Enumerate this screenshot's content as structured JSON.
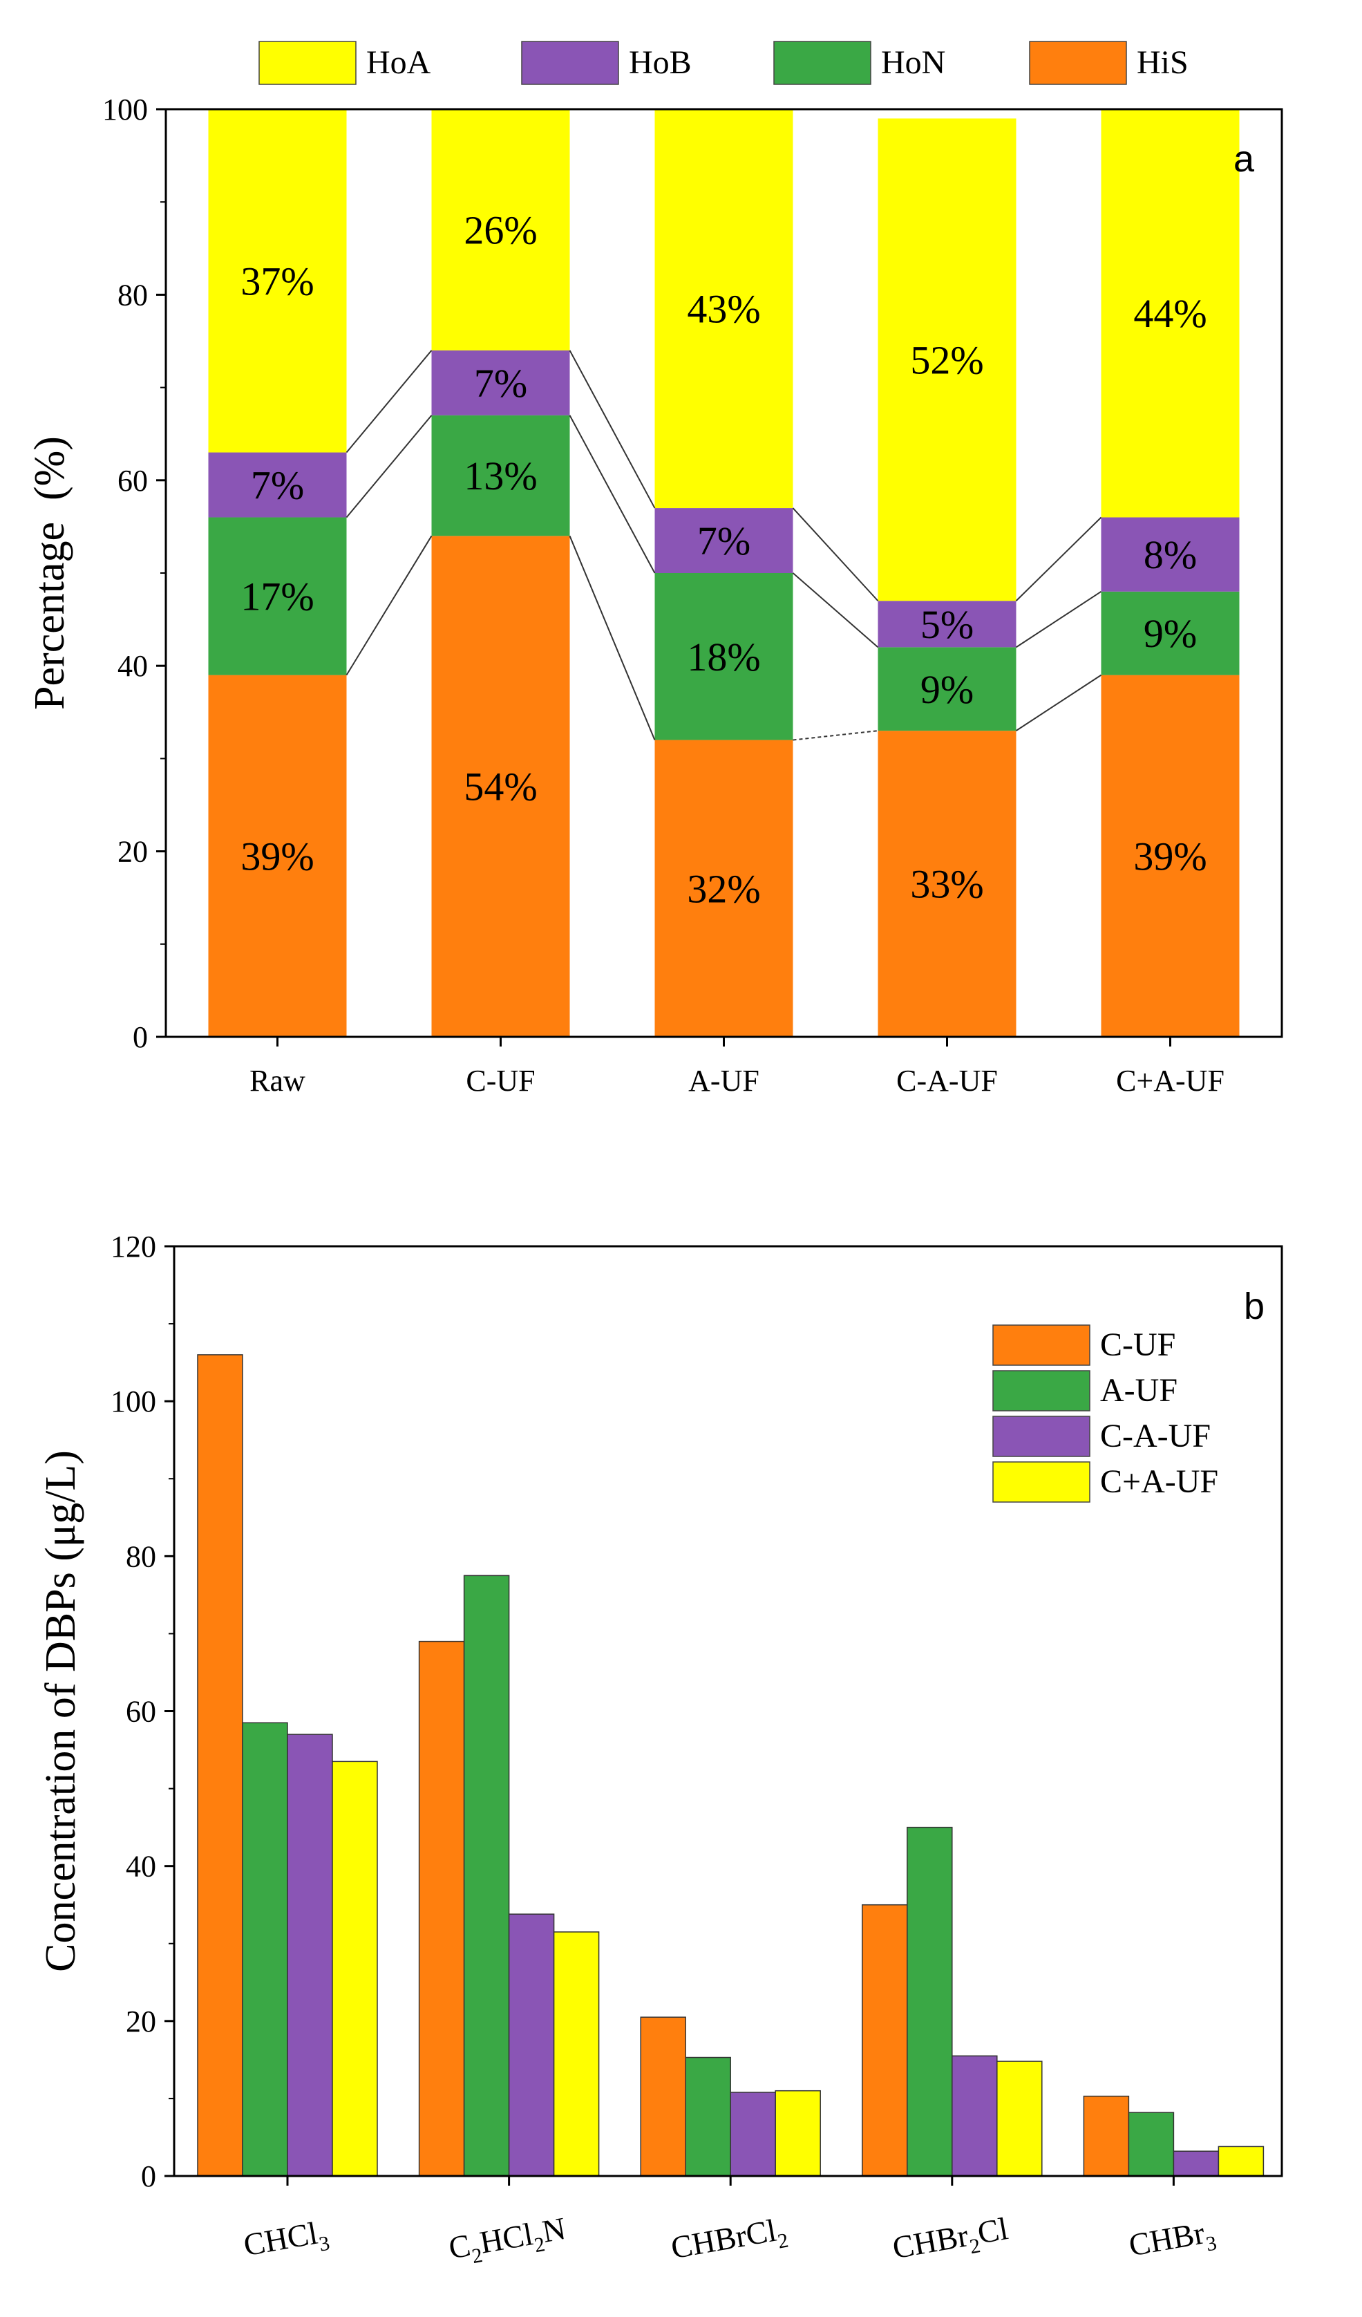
{
  "chart_data": [
    {
      "type": "bar",
      "stacked": true,
      "panel_label": "a",
      "title": "",
      "xlabel": "",
      "ylabel": "Percentage  (%)",
      "ylim": [
        0,
        100
      ],
      "yticks": [
        0,
        20,
        40,
        60,
        80,
        100
      ],
      "categories": [
        "Raw",
        "C-UF",
        "A-UF",
        "C-A-UF",
        "C+A-UF"
      ],
      "legend": [
        "HoA",
        "HoB",
        "HoN",
        "HiS"
      ],
      "legend_position": "top-center",
      "series": [
        {
          "name": "HiS",
          "color": "#ff7f0e",
          "values": [
            39,
            54,
            32,
            33,
            39
          ],
          "labels": [
            "39%",
            "54%",
            "32%",
            "33%",
            "39%"
          ]
        },
        {
          "name": "HoN",
          "color": "#3aa845",
          "values": [
            17,
            13,
            18,
            9,
            9
          ],
          "labels": [
            "17%",
            "13%",
            "18%",
            "9%",
            "9%"
          ]
        },
        {
          "name": "HoB",
          "color": "#8a55b5",
          "values": [
            7,
            7,
            7,
            5,
            8
          ],
          "labels": [
            "7%",
            "7%",
            "7%",
            "5%",
            "8%"
          ]
        },
        {
          "name": "HoA",
          "color": "#ffff00",
          "values": [
            37,
            26,
            43,
            52,
            44
          ],
          "labels": [
            "37%",
            "26%",
            "43%",
            "52%",
            "44%"
          ]
        }
      ]
    },
    {
      "type": "bar",
      "stacked": false,
      "panel_label": "b",
      "title": "",
      "xlabel": "",
      "ylabel": "Concentration of DBPs (μg/L)",
      "ylim": [
        0,
        120
      ],
      "yticks": [
        0,
        20,
        40,
        60,
        80,
        100,
        120
      ],
      "categories": [
        {
          "main": "CHCl",
          "sub": "3",
          "tail": ""
        },
        {
          "main": "C",
          "sub": "2",
          "mid": "HCl",
          "sub2": "2",
          "tail": "N"
        },
        {
          "main": "CHBrCl",
          "sub": "2",
          "tail": ""
        },
        {
          "main": "CHBr",
          "sub": "2",
          "tail": "Cl"
        },
        {
          "main": "CHBr",
          "sub": "3",
          "tail": ""
        }
      ],
      "legend_position": "top-right",
      "series": [
        {
          "name": "C-UF",
          "color": "#ff7f0e",
          "values": [
            106,
            69,
            20.5,
            35,
            10.3
          ]
        },
        {
          "name": "A-UF",
          "color": "#3aa845",
          "values": [
            58.5,
            77.5,
            15.3,
            45,
            8.2
          ]
        },
        {
          "name": "C-A-UF",
          "color": "#8a55b5",
          "values": [
            57,
            33.8,
            10.8,
            15.5,
            3.2
          ]
        },
        {
          "name": "C+A-UF",
          "color": "#ffff00",
          "values": [
            53.5,
            31.5,
            11,
            14.8,
            3.8
          ]
        }
      ]
    }
  ]
}
